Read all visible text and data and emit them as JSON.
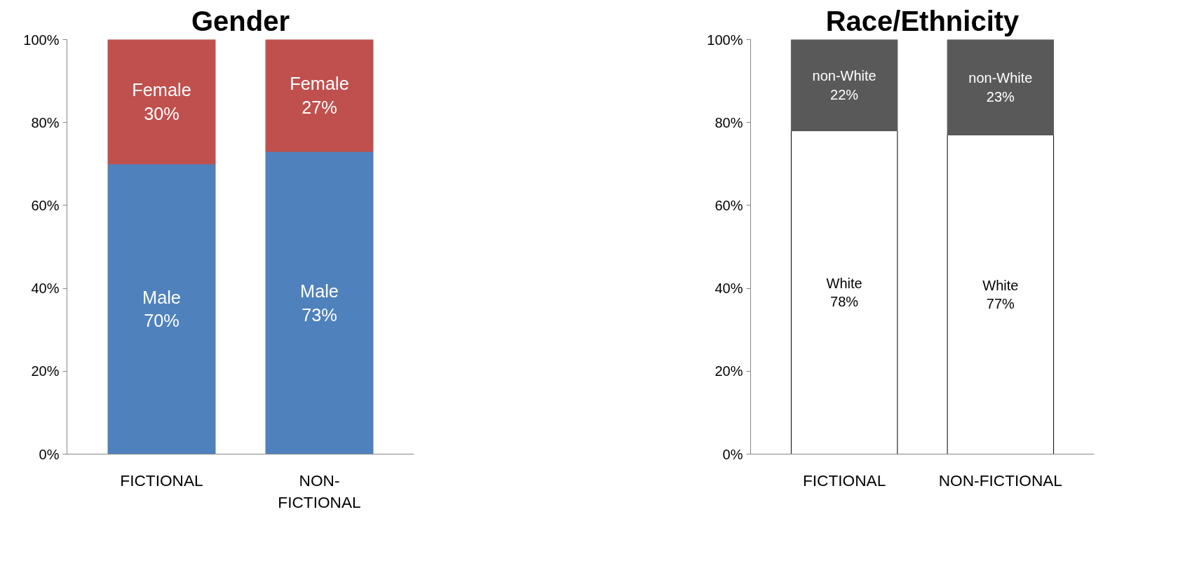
{
  "chart_data": [
    {
      "type": "bar",
      "title": "Gender",
      "categories": [
        "FICTIONAL",
        "NON-FICTIONAL"
      ],
      "stacked": true,
      "series": [
        {
          "name": "Male",
          "color": "#4f81bd",
          "values": [
            70,
            73
          ],
          "value_labels": [
            "70%",
            "73%"
          ]
        },
        {
          "name": "Female",
          "color": "#c0504d",
          "values": [
            30,
            27
          ],
          "value_labels": [
            "30%",
            "27%"
          ]
        }
      ],
      "ylim": [
        0,
        100
      ],
      "yticks": [
        {
          "value": 0,
          "label": "0%"
        },
        {
          "value": 20,
          "label": "20%"
        },
        {
          "value": 40,
          "label": "40%"
        },
        {
          "value": 60,
          "label": "60%"
        },
        {
          "value": 80,
          "label": "80%"
        },
        {
          "value": 100,
          "label": "100%"
        }
      ],
      "grid": false,
      "legend": false
    },
    {
      "type": "bar",
      "title": "Race/Ethnicity",
      "categories": [
        "FICTIONAL",
        "NON-FICTIONAL"
      ],
      "stacked": true,
      "series": [
        {
          "name": "White",
          "color": "#ffffff",
          "values": [
            78,
            77
          ],
          "value_labels": [
            "78%",
            "77%"
          ]
        },
        {
          "name": "non-White",
          "color": "#595959",
          "values": [
            22,
            23
          ],
          "value_labels": [
            "22%",
            "23%"
          ]
        }
      ],
      "ylim": [
        0,
        100
      ],
      "yticks": [
        {
          "value": 0,
          "label": "0%"
        },
        {
          "value": 20,
          "label": "20%"
        },
        {
          "value": 40,
          "label": "40%"
        },
        {
          "value": 60,
          "label": "60%"
        },
        {
          "value": 80,
          "label": "80%"
        },
        {
          "value": 100,
          "label": "100%"
        }
      ],
      "grid": false,
      "legend": false
    }
  ]
}
